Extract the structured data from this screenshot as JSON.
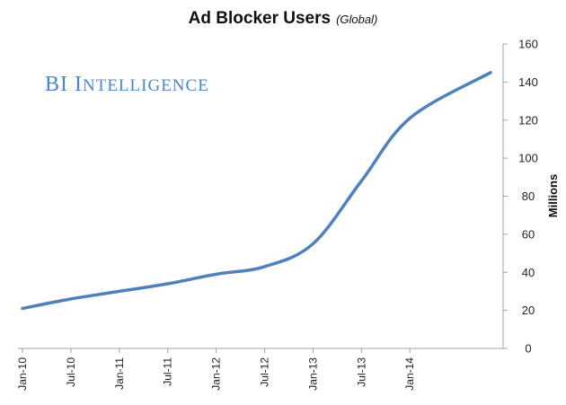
{
  "chart_data": {
    "type": "line",
    "title": "Ad Blocker Users",
    "subtitle": "(Global)",
    "ylabel": "Millions",
    "xlabel": "",
    "ylim": [
      0,
      160
    ],
    "yticks": [
      0,
      20,
      40,
      60,
      80,
      100,
      120,
      140,
      160
    ],
    "grid": false,
    "legend": "none",
    "categories": [
      "Jan-10",
      "Jul-10",
      "Jan-11",
      "Jul-11",
      "Jan-12",
      "Jul-12",
      "Jan-13",
      "Jul-13",
      "Jan-14"
    ],
    "series": [
      {
        "color": "#4f81bd",
        "x": [
          "Jan-10",
          "Jul-10",
          "Jan-11",
          "Jul-11",
          "Jan-12",
          "Jul-12",
          "Jan-13",
          "Jul-13",
          "Jan-14",
          "Nov-14"
        ],
        "values": [
          21,
          26,
          30,
          34,
          39,
          43,
          55,
          88,
          121,
          145
        ]
      }
    ]
  },
  "watermark": {
    "prefix": "BI ",
    "word_initial": "I",
    "word_rest": "NTELLIGENCE",
    "color": "#4a86c5"
  }
}
